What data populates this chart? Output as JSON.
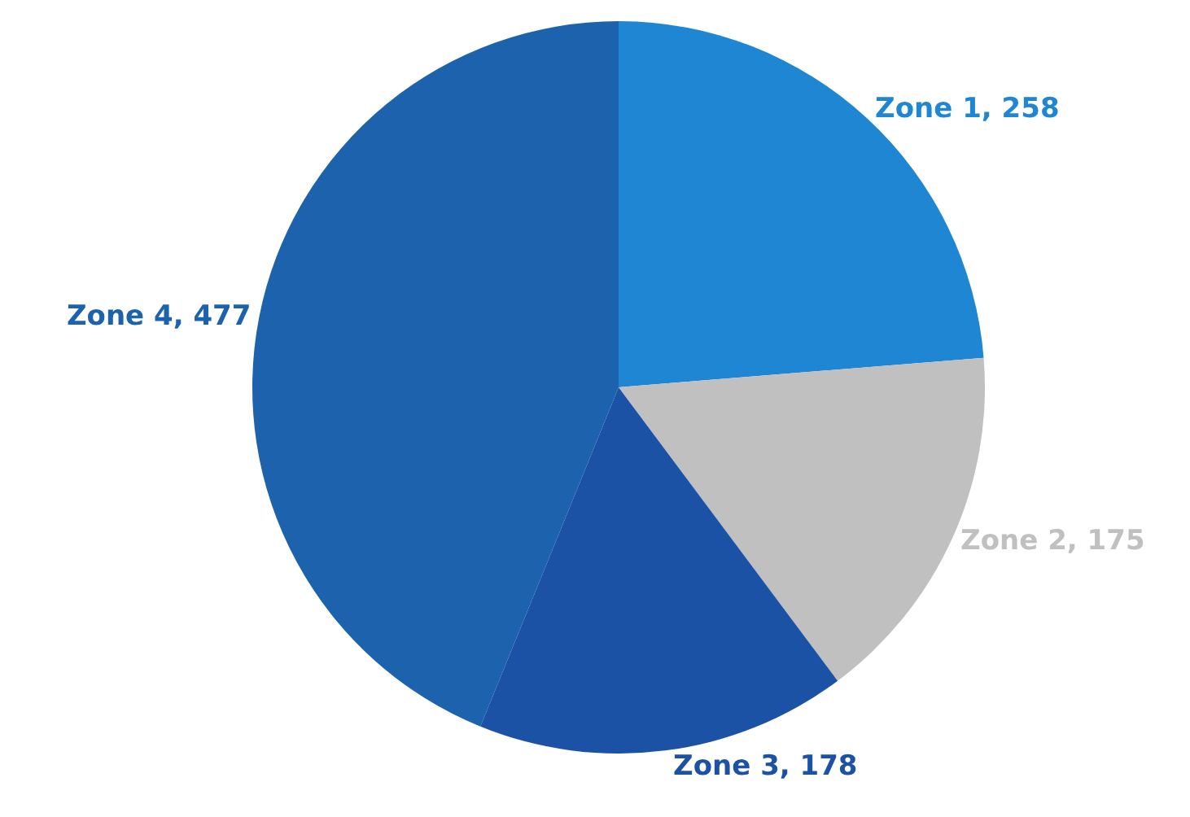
{
  "chart_data": {
    "type": "pie",
    "categories": [
      "Zone 1, 258",
      "Zone 2, 175",
      "Zone 3, 178",
      "Zone 4, 477"
    ],
    "values": [
      258,
      175,
      178,
      477
    ],
    "colors": [
      "#1f86d4",
      "#c0c0c0",
      "#1c52a6",
      "#1d62ad"
    ],
    "legend": false
  }
}
